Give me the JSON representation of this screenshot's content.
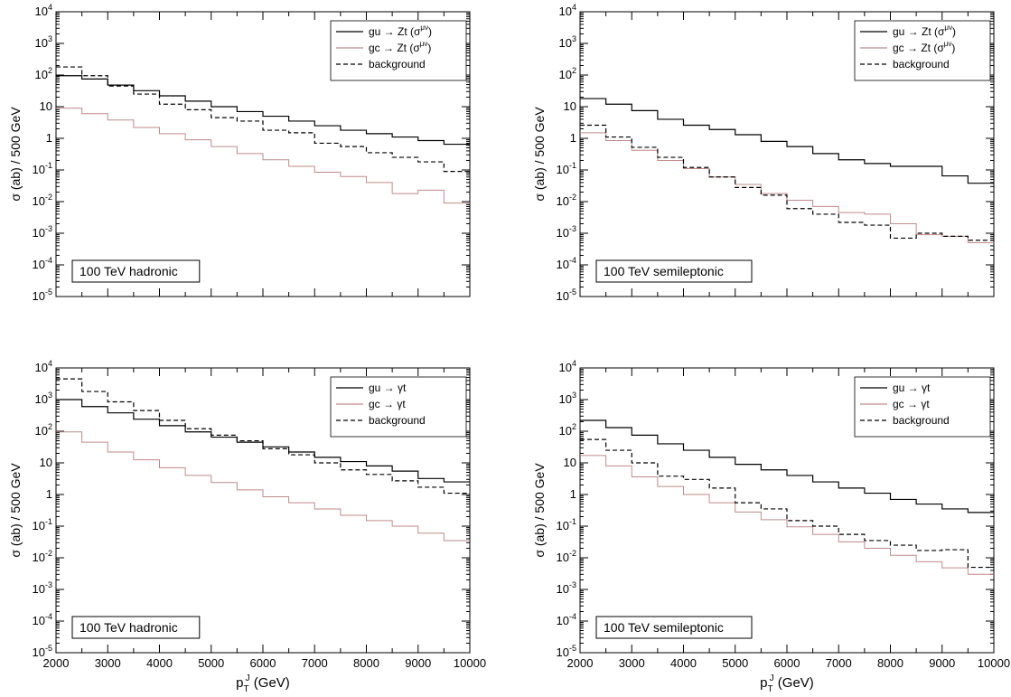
{
  "chart_data": [
    {
      "type": "line",
      "step": true,
      "panel_label": "100 TeV hadronic",
      "ylabel": "σ (ab) / 500 GeV",
      "xlabel": "",
      "xlim": [
        2000,
        10000
      ],
      "ylim": [
        1e-05,
        10000.0
      ],
      "yscale": "log",
      "x_ticks": [],
      "legend": "top-right",
      "x_edges": [
        2000,
        2500,
        3000,
        3500,
        4000,
        4500,
        5000,
        5500,
        6000,
        6500,
        7000,
        7500,
        8000,
        8500,
        9000,
        9500,
        10000
      ],
      "series": [
        {
          "name": "gu → Zt (σ",
          "name_sup": "μν",
          "name_tail": ")",
          "color": "#000000",
          "dash": "solid",
          "values": [
            95,
            75,
            48,
            32,
            22,
            15,
            10,
            7,
            5,
            3.5,
            2.5,
            1.8,
            1.4,
            1.1,
            0.85,
            0.65
          ]
        },
        {
          "name": "gc → Zt (σ",
          "name_sup": "μν",
          "name_tail": ")",
          "color": "#c08a8a",
          "dash": "solid",
          "values": [
            9,
            6,
            3.8,
            2.2,
            1.4,
            0.9,
            0.55,
            0.33,
            0.21,
            0.13,
            0.085,
            0.062,
            0.04,
            0.018,
            0.023,
            0.009
          ]
        },
        {
          "name": "background",
          "name_sup": "",
          "name_tail": "",
          "color": "#000000",
          "dash": "dashed",
          "values": [
            180,
            95,
            45,
            25,
            12,
            8,
            4.5,
            3.5,
            1.8,
            1.5,
            0.7,
            0.55,
            0.35,
            0.25,
            0.18,
            0.09
          ]
        }
      ]
    },
    {
      "type": "line",
      "step": true,
      "panel_label": "100 TeV semileptonic",
      "ylabel": "σ (ab) / 500 GeV",
      "xlabel": "",
      "xlim": [
        2000,
        10000
      ],
      "ylim": [
        1e-05,
        10000.0
      ],
      "yscale": "log",
      "x_ticks": [],
      "legend": "top-right",
      "x_edges": [
        2000,
        2500,
        3000,
        3500,
        4000,
        4500,
        5000,
        5500,
        6000,
        6500,
        7000,
        7500,
        8000,
        8500,
        9000,
        9500,
        10000
      ],
      "series": [
        {
          "name": "gu → Zt (σ",
          "name_sup": "μν",
          "name_tail": ")",
          "color": "#000000",
          "dash": "solid",
          "values": [
            18,
            12,
            7.5,
            4,
            2.6,
            1.9,
            1.3,
            0.8,
            0.55,
            0.33,
            0.21,
            0.16,
            0.13,
            0.13,
            0.065,
            0.038
          ]
        },
        {
          "name": "gc → Zt (σ",
          "name_sup": "μν",
          "name_tail": ")",
          "color": "#c08a8a",
          "dash": "solid",
          "values": [
            1.5,
            0.85,
            0.42,
            0.2,
            0.11,
            0.06,
            0.035,
            0.018,
            0.011,
            0.007,
            0.0045,
            0.004,
            0.002,
            0.0009,
            0.0008,
            0.0005
          ]
        },
        {
          "name": "background",
          "name_sup": "",
          "name_tail": "",
          "color": "#000000",
          "dash": "dashed",
          "values": [
            2.6,
            1.1,
            0.52,
            0.25,
            0.12,
            0.06,
            0.028,
            0.016,
            0.006,
            0.004,
            0.0022,
            0.0018,
            0.0007,
            0.001,
            0.0008,
            0.0006
          ]
        }
      ]
    },
    {
      "type": "line",
      "step": true,
      "panel_label": "100 TeV hadronic",
      "ylabel": "σ (ab) / 500 GeV",
      "xlabel": "p",
      "xlabel_sub": "T",
      "xlabel_sup": "J",
      "xlabel_tail": " (GeV)",
      "xlim": [
        2000,
        10000
      ],
      "ylim": [
        1e-05,
        10000.0
      ],
      "yscale": "log",
      "x_ticks": [
        2000,
        3000,
        4000,
        5000,
        6000,
        7000,
        8000,
        9000,
        10000
      ],
      "legend": "top-right",
      "x_edges": [
        2000,
        2500,
        3000,
        3500,
        4000,
        4500,
        5000,
        5500,
        6000,
        6500,
        7000,
        7500,
        8000,
        8500,
        9000,
        9500,
        10000
      ],
      "series": [
        {
          "name": "gu → γt",
          "name_sup": "",
          "name_tail": "",
          "color": "#000000",
          "dash": "solid",
          "values": [
            1000,
            600,
            380,
            240,
            150,
            95,
            65,
            45,
            32,
            22,
            15,
            11,
            8,
            5.5,
            3.2,
            2.5
          ]
        },
        {
          "name": "gc → γt",
          "name_sup": "",
          "name_tail": "",
          "color": "#c08a8a",
          "dash": "solid",
          "values": [
            95,
            45,
            22,
            12.5,
            7,
            4,
            2.4,
            1.4,
            0.85,
            0.55,
            0.35,
            0.22,
            0.15,
            0.1,
            0.06,
            0.035
          ]
        },
        {
          "name": "background",
          "name_sup": "",
          "name_tail": "",
          "color": "#000000",
          "dash": "dashed",
          "values": [
            4500,
            1800,
            850,
            450,
            220,
            120,
            75,
            50,
            28,
            18,
            10,
            6,
            4.3,
            2.7,
            1.7,
            1.1
          ]
        }
      ]
    },
    {
      "type": "line",
      "step": true,
      "panel_label": "100 TeV semileptonic",
      "ylabel": "σ (ab) / 500 GeV",
      "xlabel": "p",
      "xlabel_sub": "T",
      "xlabel_sup": "J",
      "xlabel_tail": " (GeV)",
      "xlim": [
        2000,
        10000
      ],
      "ylim": [
        1e-05,
        10000.0
      ],
      "yscale": "log",
      "x_ticks": [
        2000,
        3000,
        4000,
        5000,
        6000,
        7000,
        8000,
        9000,
        10000
      ],
      "legend": "top-right",
      "x_edges": [
        2000,
        2500,
        3000,
        3500,
        4000,
        4500,
        5000,
        5500,
        6000,
        6500,
        7000,
        7500,
        8000,
        8500,
        9000,
        9500,
        10000
      ],
      "series": [
        {
          "name": "gu → γt",
          "name_sup": "",
          "name_tail": "",
          "color": "#000000",
          "dash": "solid",
          "values": [
            220,
            130,
            75,
            40,
            25,
            15,
            9,
            6,
            4,
            2.5,
            1.6,
            1.1,
            0.7,
            0.5,
            0.35,
            0.27
          ]
        },
        {
          "name": "gc → γt",
          "name_sup": "",
          "name_tail": "",
          "color": "#c08a8a",
          "dash": "solid",
          "values": [
            17,
            8,
            3.6,
            1.8,
            1,
            0.55,
            0.28,
            0.16,
            0.095,
            0.055,
            0.032,
            0.02,
            0.012,
            0.0075,
            0.0048,
            0.003
          ]
        },
        {
          "name": "background",
          "name_sup": "",
          "name_tail": "",
          "color": "#000000",
          "dash": "dashed",
          "values": [
            55,
            25,
            10,
            3.8,
            3,
            1.6,
            0.55,
            0.35,
            0.15,
            0.1,
            0.055,
            0.035,
            0.025,
            0.017,
            0.018,
            0.005
          ]
        }
      ]
    }
  ]
}
